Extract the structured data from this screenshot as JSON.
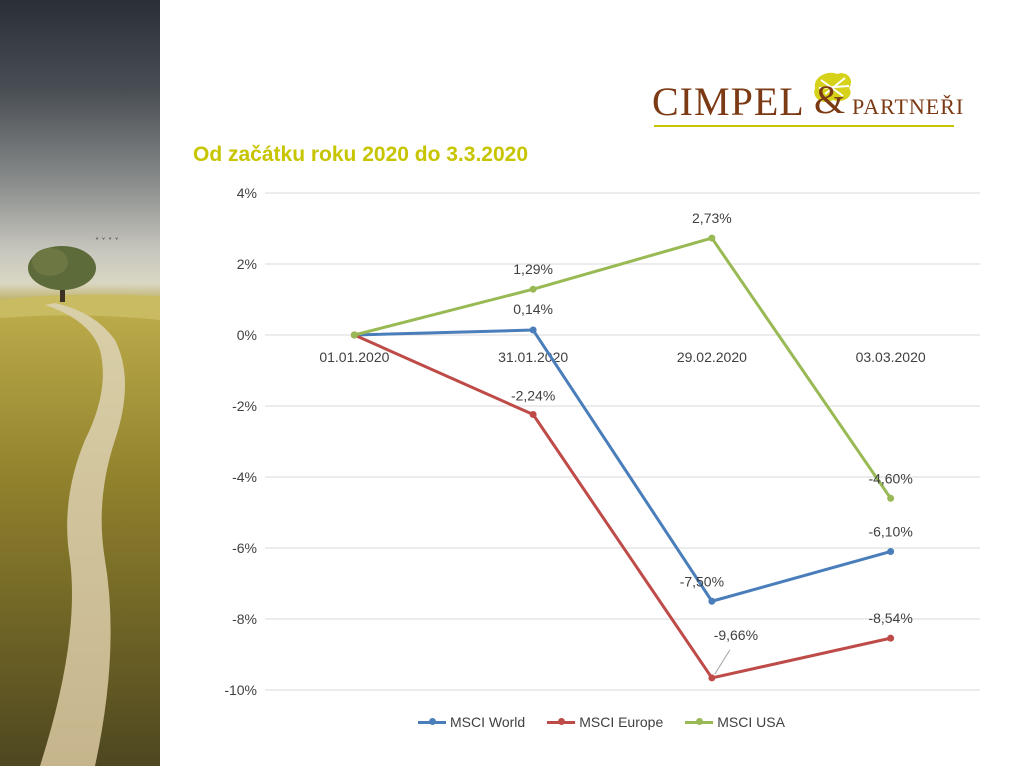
{
  "logo": {
    "brand": "CIMPEL",
    "amp": "&",
    "partners": "PARTNEŘI"
  },
  "title": "Od začátku roku 2020 do 3.3.2020",
  "colors": {
    "world": "#4a7ebb",
    "europe": "#be4b48",
    "usa": "#98b954",
    "title": "#c7c400",
    "logo": "#7b3a14"
  },
  "chart_data": {
    "type": "line",
    "categories": [
      "01.01.2020",
      "31.01.2020",
      "29.02.2020",
      "03.03.2020"
    ],
    "yticks": [
      "4%",
      "2%",
      "0%",
      "-2%",
      "-4%",
      "-6%",
      "-8%",
      "-10%"
    ],
    "ylim": [
      -10,
      4
    ],
    "grid": true,
    "legend": "bottom",
    "series": [
      {
        "name": "MSCI World",
        "values": [
          0,
          0.14,
          -7.5,
          -6.1
        ],
        "labels": [
          "",
          "0,14%",
          "-7,50%",
          "-6,10%"
        ]
      },
      {
        "name": "MSCI Europe",
        "values": [
          0,
          -2.24,
          -9.66,
          -8.54
        ],
        "labels": [
          "",
          "-2,24%",
          "-9,66%",
          "-8,54%"
        ]
      },
      {
        "name": "MSCI USA",
        "values": [
          0,
          1.29,
          2.73,
          -4.6
        ],
        "labels": [
          "",
          "1,29%",
          "2,73%",
          "-4,60%"
        ]
      }
    ]
  }
}
